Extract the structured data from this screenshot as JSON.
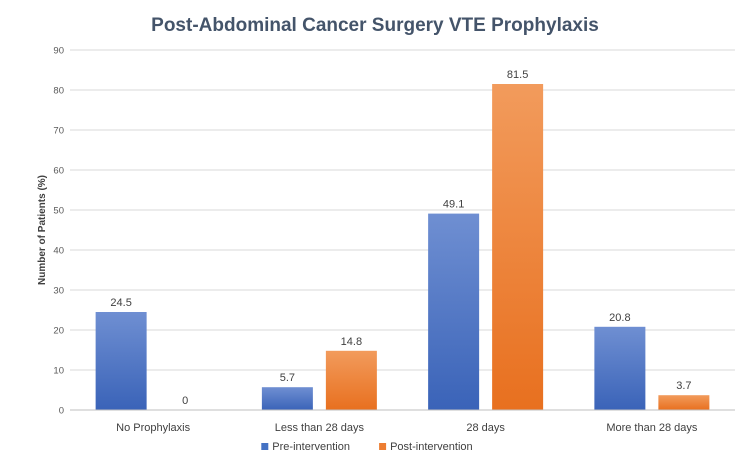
{
  "chart_data": {
    "type": "bar",
    "title": "Post-Abdominal Cancer Surgery VTE Prophylaxis",
    "xlabel": "",
    "ylabel": "Number of Patients (%)",
    "ylim": [
      0,
      90
    ],
    "yticks": [
      0,
      10,
      20,
      30,
      40,
      50,
      60,
      70,
      80,
      90
    ],
    "grid": true,
    "legend_position": "bottom",
    "categories": [
      "No Prophylaxis",
      "Less than 28 days",
      "28 days",
      "More than 28 days"
    ],
    "series": [
      {
        "name": "Pre-intervention",
        "values": [
          24.5,
          5.7,
          49.1,
          20.8
        ],
        "color": "#4472c4"
      },
      {
        "name": "Post-intervention",
        "values": [
          0,
          14.8,
          81.5,
          3.7
        ],
        "color": "#ed7d31"
      }
    ]
  }
}
